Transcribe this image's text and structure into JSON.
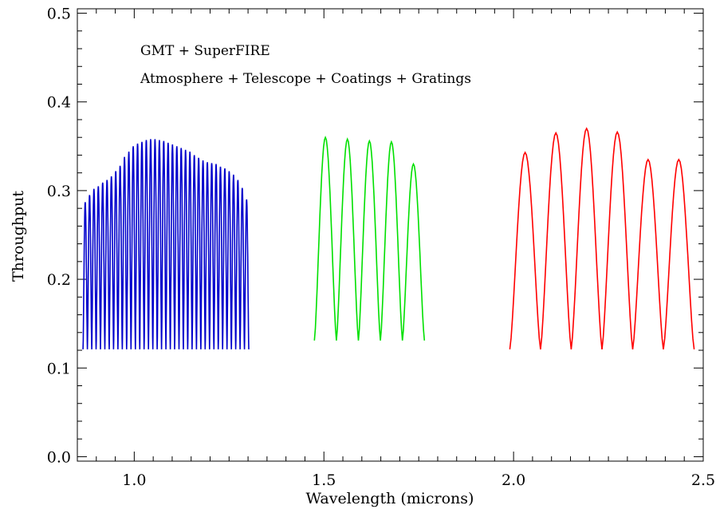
{
  "chart_data": {
    "type": "line",
    "title": "",
    "xlabel": "Wavelength (microns)",
    "ylabel": "Throughput",
    "xlim": [
      0.85,
      2.5
    ],
    "ylim": [
      -0.005,
      0.505
    ],
    "grid": false,
    "x_major_ticks": [
      1.0,
      1.5,
      2.0,
      2.5
    ],
    "x_minor_step": 0.05,
    "y_major_ticks": [
      0.0,
      0.1,
      0.2,
      0.3,
      0.4,
      0.5
    ],
    "y_minor_step": 0.02,
    "annotations": [
      "GMT + SuperFIRE",
      "Atmosphere + Telescope + Coatings + Gratings"
    ],
    "series": [
      {
        "color": "#0000cc",
        "segments": [
          {
            "start": 0.865,
            "width": 0.0115,
            "peaks": [
              0.287,
              0.295,
              0.302,
              0.305,
              0.309,
              0.312,
              0.316,
              0.322,
              0.328,
              0.338,
              0.344,
              0.35,
              0.353,
              0.355,
              0.357,
              0.358,
              0.358,
              0.357,
              0.356,
              0.354,
              0.352,
              0.35,
              0.348,
              0.346,
              0.344,
              0.34,
              0.337,
              0.334,
              0.332,
              0.331,
              0.33,
              0.327,
              0.325,
              0.322,
              0.318,
              0.312,
              0.303,
              0.29
            ],
            "min": 0.121
          }
        ]
      },
      {
        "color": "#00e000",
        "segments": [
          {
            "start": 1.475,
            "width": 0.058,
            "peaks": [
              0.36,
              0.358,
              0.356,
              0.355,
              0.33
            ],
            "min": 0.131
          }
        ]
      },
      {
        "color": "#ff0000",
        "segments": [
          {
            "start": 1.99,
            "width": 0.081,
            "peaks": [
              0.343,
              0.365,
              0.37,
              0.366,
              0.335,
              0.335
            ],
            "min": 0.121
          }
        ]
      }
    ]
  }
}
